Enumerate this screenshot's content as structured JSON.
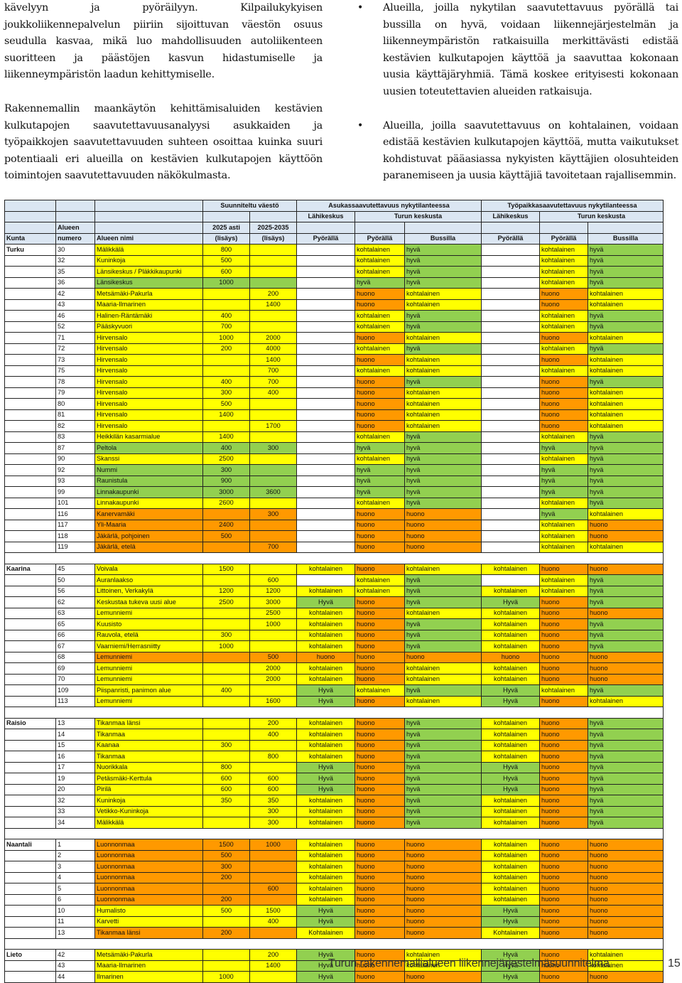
{
  "text_left": [
    "kävelyyn ja pyöräilyyn. Kilpailukykyisen joukkoliikennepalvelun piiriin sijoittuvan väestön osuus seudulla kasvaa, mikä luo mahdollisuuden autoliikenteen suoritteen ja päästöjen kasvun hidastumiselle ja liikenneympäristön laadun kehittymiselle.",
    "Rakennemallin maankäytön kehittämisaluiden kestävien kulkutapojen saavutettavuusanalyysi asukkaiden ja työpaikkojen saavutettavuuden suhteen osoittaa kuinka suuri potentiaali eri alueilla on kestävien kulkutapojen käyttöön toimintojen saavutettavuuden näkökulmasta."
  ],
  "bullets": [
    "Alueilla, joilla nykytilan saavutettavuus pyörällä tai bussilla on hyvä, voidaan liikennejärjestelmän ja liikenneympäristön ratkaisuilla merkittävästi edistää kestävien kulkutapojen käyttöä ja saavuttaa kokonaan uusia käyttäjäryhmiä. Tämä koskee erityisesti kokonaan uusien toteutettavien alueiden ratkaisuja.",
    "Alueilla, joilla saavutettavuus on kohtalainen, voidaan edistää kestävien kulkutapojen käyttöä, mutta vaikutukset kohdistuvat pääasiassa nykyisten käyttäjien olosuhteiden paranemiseen ja uusia käyttäjiä tavoitetaan rajallisemmin."
  ],
  "table": {
    "header1": [
      "Suunniteltu väestö",
      "Asukassaavutettavuus nykytilanteessa",
      "Työpaikkasaavutettavuus nykytilanteessa"
    ],
    "header2": [
      "Lähikeskus",
      "Turun keskusta",
      "Lähikeskus",
      "Turun keskusta"
    ],
    "header3": [
      "Alueen",
      "2025 asti",
      "2025-2035"
    ],
    "header4": [
      "Kunta",
      "numero",
      "Alueen nimi",
      "(lisäys)",
      "(lisäys)",
      "Pyörällä",
      "Pyörällä",
      "Bussilla",
      "Pyörällä",
      "Pyörällä",
      "Bussilla"
    ],
    "groups": [
      {
        "kunta": "Turku",
        "rows": [
          [
            "30",
            "Mälikkälä",
            "800",
            "",
            "",
            "kohtalainen",
            "hyvä",
            "",
            "kohtalainen",
            "hyvä"
          ],
          [
            "32",
            "Kuninkoja",
            "500",
            "",
            "",
            "kohtalainen",
            "hyvä",
            "",
            "kohtalainen",
            "hyvä"
          ],
          [
            "35",
            "Länsikeskus / Pläkkikaupunki",
            "600",
            "",
            "",
            "kohtalainen",
            "hyvä",
            "",
            "kohtalainen",
            "hyvä"
          ],
          [
            "36",
            "Länsikeskus",
            "1000",
            "",
            "",
            "hyvä",
            "hyvä",
            "",
            "kohtalainen",
            "hyvä"
          ],
          [
            "42",
            "Metsämäki-Pakurla",
            "",
            "200",
            "",
            "huono",
            "kohtalainen",
            "",
            "huono",
            "kohtalainen"
          ],
          [
            "43",
            "Maaria-Ilmarinen",
            "",
            "1400",
            "",
            "huono",
            "kohtalainen",
            "",
            "huono",
            "kohtalainen"
          ],
          [
            "46",
            "Halinen-Räntämäki",
            "400",
            "",
            "",
            "kohtalainen",
            "hyvä",
            "",
            "kohtalainen",
            "hyvä"
          ],
          [
            "52",
            "Pääskyvuori",
            "700",
            "",
            "",
            "kohtalainen",
            "hyvä",
            "",
            "kohtalainen",
            "hyvä"
          ],
          [
            "71",
            "Hirvensalo",
            "1000",
            "2000",
            "",
            "huono",
            "kohtalainen",
            "",
            "huono",
            "kohtalainen"
          ],
          [
            "72",
            "Hirvensalo",
            "200",
            "4000",
            "",
            "kohtalainen",
            "hyvä",
            "",
            "kohtalainen",
            "hyvä"
          ],
          [
            "73",
            "Hirvensalo",
            "",
            "1400",
            "",
            "huono",
            "kohtalainen",
            "",
            "huono",
            "kohtalainen"
          ],
          [
            "75",
            "Hirvensalo",
            "",
            "700",
            "",
            "kohtalainen",
            "kohtalainen",
            "",
            "kohtalainen",
            "kohtalainen"
          ],
          [
            "78",
            "Hirvensalo",
            "400",
            "700",
            "",
            "huono",
            "hyvä",
            "",
            "huono",
            "hyvä"
          ],
          [
            "79",
            "Hirvensalo",
            "300",
            "400",
            "",
            "huono",
            "kohtalainen",
            "",
            "huono",
            "kohtalainen"
          ],
          [
            "80",
            "Hirvensalo",
            "500",
            "",
            "",
            "huono",
            "kohtalainen",
            "",
            "huono",
            "kohtalainen"
          ],
          [
            "81",
            "Hirvensalo",
            "1400",
            "",
            "",
            "huono",
            "kohtalainen",
            "",
            "huono",
            "kohtalainen"
          ],
          [
            "82",
            "Hirvensalo",
            "",
            "1700",
            "",
            "huono",
            "kohtalainen",
            "",
            "huono",
            "kohtalainen"
          ],
          [
            "83",
            "Heikkilän kasarmialue",
            "1400",
            "",
            "",
            "kohtalainen",
            "hyvä",
            "",
            "kohtalainen",
            "hyvä"
          ],
          [
            "87",
            "Peltola",
            "400",
            "300",
            "",
            "hyvä",
            "hyvä",
            "",
            "hyvä",
            "hyvä"
          ],
          [
            "90",
            "Skanssi",
            "2500",
            "",
            "",
            "kohtalainen",
            "hyvä",
            "",
            "kohtalainen",
            "hyvä"
          ],
          [
            "92",
            "Nummi",
            "300",
            "",
            "",
            "hyvä",
            "hyvä",
            "",
            "hyvä",
            "hyvä"
          ],
          [
            "93",
            "Raunistula",
            "900",
            "",
            "",
            "hyvä",
            "hyvä",
            "",
            "hyvä",
            "hyvä"
          ],
          [
            "99",
            "Linnakaupunki",
            "3000",
            "3600",
            "",
            "hyvä",
            "hyvä",
            "",
            "hyvä",
            "hyvä"
          ],
          [
            "101",
            "Linnakaupunki",
            "2600",
            "",
            "",
            "kohtalainen",
            "hyvä",
            "",
            "kohtalainen",
            "hyvä"
          ],
          [
            "116",
            "Kanervamäki",
            "",
            "300",
            "",
            "huono",
            "huono",
            "",
            "hyvä",
            "kohtalainen"
          ],
          [
            "117",
            "Yli-Maaria",
            "2400",
            "",
            "",
            "huono",
            "huono",
            "",
            "kohtalainen",
            "huono"
          ],
          [
            "118",
            "Jäkärlä, pohjoinen",
            "500",
            "",
            "",
            "huono",
            "huono",
            "",
            "kohtalainen",
            "huono"
          ],
          [
            "119",
            "Jäkärlä, etelä",
            "",
            "700",
            "",
            "huono",
            "huono",
            "",
            "kohtalainen",
            "kohtalainen"
          ]
        ]
      },
      {
        "kunta": "Kaarina",
        "rows": [
          [
            "45",
            "Voivala",
            "1500",
            "",
            "kohtalainen",
            "huono",
            "kohtalainen",
            "kohtalainen",
            "huono",
            "huono"
          ],
          [
            "50",
            "Auranlaakso",
            "",
            "600",
            "",
            "kohtalainen",
            "hyvä",
            "",
            "kohtalainen",
            "hyvä"
          ],
          [
            "56",
            "Littoinen, Verkakylä",
            "1200",
            "1200",
            "kohtalainen",
            "kohtalainen",
            "hyvä",
            "kohtalainen",
            "kohtalainen",
            "hyvä"
          ],
          [
            "62",
            "Keskustaa tukeva uusi alue",
            "2500",
            "3000",
            "Hyvä",
            "huono",
            "hyvä",
            "Hyvä",
            "huono",
            "hyvä"
          ],
          [
            "63",
            "Lemunniemi",
            "",
            "2500",
            "kohtalainen",
            "huono",
            "kohtalainen",
            "kohtalainen",
            "huono",
            "huono"
          ],
          [
            "65",
            "Kuusisto",
            "",
            "1000",
            "kohtalainen",
            "huono",
            "hyvä",
            "kohtalainen",
            "huono",
            "hyvä"
          ],
          [
            "66",
            "Rauvola, etelä",
            "300",
            "",
            "kohtalainen",
            "huono",
            "hyvä",
            "kohtalainen",
            "huono",
            "hyvä"
          ],
          [
            "67",
            "Vaarniemi/Herrasniitty",
            "1000",
            "",
            "kohtalainen",
            "huono",
            "hyvä",
            "kohtalainen",
            "huono",
            "hyvä"
          ],
          [
            "68",
            "Lemunniemi",
            "",
            "500",
            "huono",
            "huono",
            "huono",
            "huono",
            "huono",
            "huono"
          ],
          [
            "69",
            "Lemunniemi",
            "",
            "2000",
            "kohtalainen",
            "huono",
            "kohtalainen",
            "kohtalainen",
            "huono",
            "huono"
          ],
          [
            "70",
            "Lemunniemi",
            "",
            "2000",
            "kohtalainen",
            "huono",
            "kohtalainen",
            "kohtalainen",
            "huono",
            "huono"
          ],
          [
            "109",
            "Piispanristi, panimon alue",
            "400",
            "",
            "Hyvä",
            "kohtalainen",
            "hyvä",
            "Hyvä",
            "kohtalainen",
            "hyvä"
          ],
          [
            "113",
            "Lemunniemi",
            "",
            "1600",
            "Hyvä",
            "huono",
            "kohtalainen",
            "Hyvä",
            "huono",
            "kohtalainen"
          ]
        ]
      },
      {
        "kunta": "Raisio",
        "rows": [
          [
            "13",
            "Tikanmaa länsi",
            "",
            "200",
            "kohtalainen",
            "huono",
            "hyvä",
            "kohtalainen",
            "huono",
            "hyvä"
          ],
          [
            "14",
            "Tikanmaa",
            "",
            "400",
            "kohtalainen",
            "huono",
            "hyvä",
            "kohtalainen",
            "huono",
            "hyvä"
          ],
          [
            "15",
            "Kaanaa",
            "300",
            "",
            "kohtalainen",
            "huono",
            "hyvä",
            "kohtalainen",
            "huono",
            "hyvä"
          ],
          [
            "16",
            "Tikanmaa",
            "",
            "800",
            "kohtalainen",
            "huono",
            "hyvä",
            "kohtalainen",
            "huono",
            "hyvä"
          ],
          [
            "17",
            "Nuorikkala",
            "800",
            "",
            "Hyvä",
            "huono",
            "hyvä",
            "Hyvä",
            "huono",
            "hyvä"
          ],
          [
            "19",
            "Petäsmäki-Kerttula",
            "600",
            "600",
            "Hyvä",
            "huono",
            "hyvä",
            "Hyvä",
            "huono",
            "hyvä"
          ],
          [
            "20",
            "Pirilä",
            "600",
            "600",
            "Hyvä",
            "huono",
            "hyvä",
            "Hyvä",
            "huono",
            "hyvä"
          ],
          [
            "32",
            "Kuninkoja",
            "350",
            "350",
            "kohtalainen",
            "huono",
            "hyvä",
            "kohtalainen",
            "huono",
            "hyvä"
          ],
          [
            "33",
            "Vetikko-Kuninkoja",
            "",
            "300",
            "kohtalainen",
            "huono",
            "hyvä",
            "kohtalainen",
            "huono",
            "hyvä"
          ],
          [
            "34",
            "Mälikkälä",
            "",
            "300",
            "kohtalainen",
            "huono",
            "hyvä",
            "kohtalainen",
            "huono",
            "hyvä"
          ]
        ]
      },
      {
        "kunta": "Naantali",
        "rows": [
          [
            "1",
            "Luonnonmaa",
            "1500",
            "1000",
            "kohtalainen",
            "huono",
            "huono",
            "kohtalainen",
            "huono",
            "huono"
          ],
          [
            "2",
            "Luonnonmaa",
            "500",
            "",
            "kohtalainen",
            "huono",
            "huono",
            "kohtalainen",
            "huono",
            "huono"
          ],
          [
            "3",
            "Luonnonmaa",
            "300",
            "",
            "kohtalainen",
            "huono",
            "huono",
            "kohtalainen",
            "huono",
            "huono"
          ],
          [
            "4",
            "Luonnonmaa",
            "200",
            "",
            "kohtalainen",
            "huono",
            "huono",
            "kohtalainen",
            "huono",
            "huono"
          ],
          [
            "5",
            "Luonnonmaa",
            "",
            "600",
            "kohtalainen",
            "huono",
            "huono",
            "kohtalainen",
            "huono",
            "huono"
          ],
          [
            "6",
            "Luonnonmaa",
            "200",
            "",
            "kohtalainen",
            "huono",
            "huono",
            "kohtalainen",
            "huono",
            "huono"
          ],
          [
            "10",
            "Humalisto",
            "500",
            "1500",
            "Hyvä",
            "huono",
            "huono",
            "Hyvä",
            "huono",
            "huono"
          ],
          [
            "11",
            "Karvetti",
            "",
            "400",
            "Hyvä",
            "huono",
            "huono",
            "Hyvä",
            "huono",
            "huono"
          ],
          [
            "13",
            "Tikanmaa länsi",
            "200",
            "",
            "Kohtalainen",
            "huono",
            "huono",
            "Kohtalainen",
            "huono",
            "huono"
          ]
        ]
      },
      {
        "kunta": "Lieto",
        "rows": [
          [
            "42",
            "Metsämäki-Pakurla",
            "",
            "200",
            "Hyvä",
            "huono",
            "kohtalainen",
            "Hyvä",
            "huono",
            "kohtalainen"
          ],
          [
            "43",
            "Maaria-Ilmarinen",
            "",
            "1400",
            "Hyvä",
            "huono",
            "kohtalainen",
            "Hyvä",
            "huono",
            "kohtalainen"
          ],
          [
            "44",
            "Ilmarinen",
            "1000",
            "",
            "Hyvä",
            "huono",
            "huono",
            "Hyvä",
            "huono",
            "huono"
          ]
        ]
      }
    ]
  },
  "colors": {
    "hyva": "#92d050",
    "kohtalainen": "#ffff00",
    "huono": "#ff9900",
    "header": "#dbe6f2"
  },
  "footer": {
    "title": "Turun rakennemallialueen liikennejärjestelmäsuunnitelma",
    "page": "15"
  }
}
